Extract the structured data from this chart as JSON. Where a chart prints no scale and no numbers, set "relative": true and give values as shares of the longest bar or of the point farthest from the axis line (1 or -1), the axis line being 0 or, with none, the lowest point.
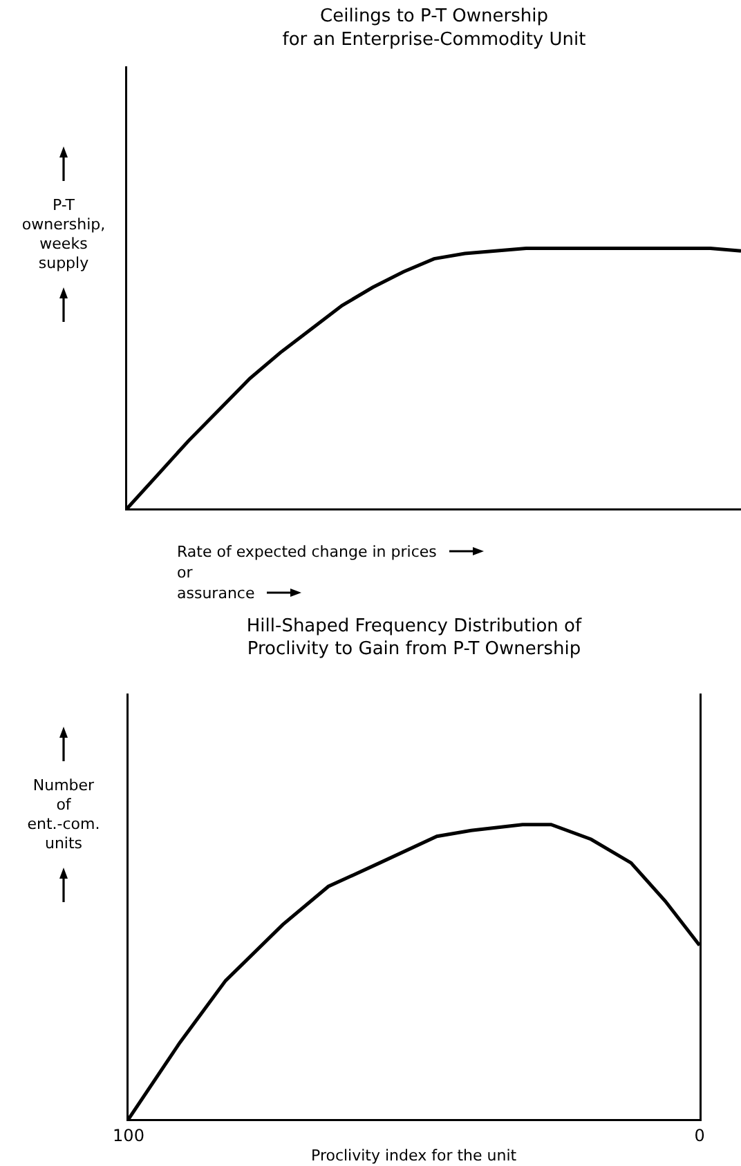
{
  "chart_data": [
    {
      "type": "line",
      "title": "Ceilings to P-T Ownership\nfor an Enterprise-Commodity Unit",
      "ylabel": "P-T\nownership,\nweeks\nsupply",
      "xlabel": "Rate of expected change in prices\nor\nassurance",
      "relative": true,
      "tick_labels": false,
      "color": "#000000",
      "line_style": "solid",
      "categories": [
        null,
        null,
        null,
        null,
        null,
        null,
        null,
        null,
        null,
        null,
        null,
        null,
        null,
        null,
        null,
        null,
        null,
        null,
        null,
        null,
        null
      ],
      "values": [
        0,
        0.13,
        0.26,
        0.38,
        0.5,
        0.6,
        0.69,
        0.78,
        0.85,
        0.91,
        0.96,
        0.98,
        0.99,
        1,
        1,
        1,
        1,
        1,
        1,
        1,
        0.99
      ]
    },
    {
      "type": "line",
      "title": "Hill-Shaped Frequency Distribution of\nProclivity to Gain from P-T Ownership",
      "ylabel": "Number\nof\nent.-com.\nunits",
      "xlabel": "Proclivity index for the unit",
      "relative": true,
      "tick_labels": "x",
      "color": "#000000",
      "line_style": "solid",
      "xlim": [
        100,
        0
      ],
      "xticks": [
        100,
        0
      ],
      "x": [
        100,
        91,
        83,
        73,
        65,
        56,
        46,
        40,
        31,
        26,
        19,
        12,
        6,
        0
      ],
      "values": [
        0,
        0.26,
        0.47,
        0.66,
        0.79,
        0.87,
        0.96,
        0.98,
        1,
        1,
        0.95,
        0.87,
        0.74,
        0.59
      ]
    }
  ]
}
